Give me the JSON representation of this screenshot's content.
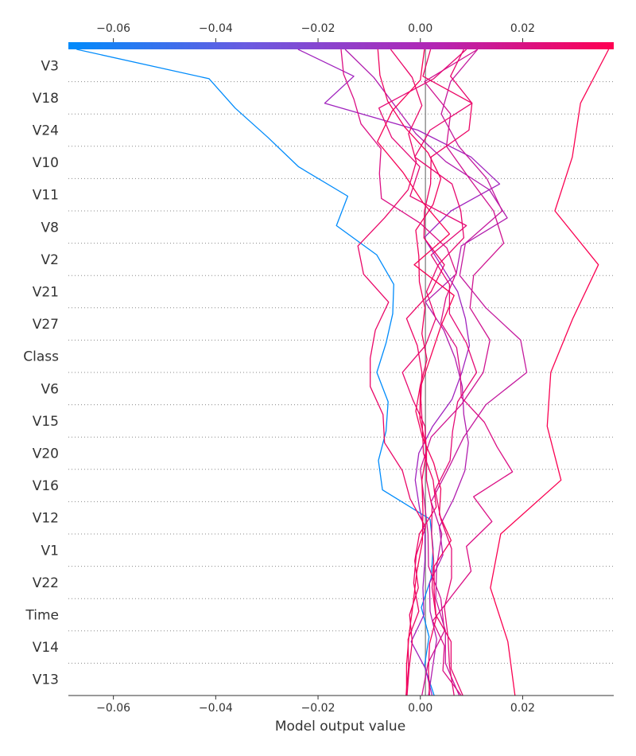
{
  "chart_data": {
    "type": "line",
    "subtype": "shap-decision-plot",
    "xlabel": "Model output value",
    "xlim": [
      -0.0688,
      0.0378
    ],
    "base_value": 0.001,
    "x_ticks": [
      -0.06,
      -0.04,
      -0.02,
      0.0,
      0.02
    ],
    "x_tick_labels": [
      "−0.06",
      "−0.04",
      "−0.02",
      "0.00",
      "0.02"
    ],
    "colorbar": {
      "position": "top",
      "colormap": "blue-to-red",
      "stops": [
        "#008bfb",
        "#6c5ae0",
        "#b226b5",
        "#ff0052"
      ]
    },
    "features": [
      "V3",
      "V18",
      "V24",
      "V10",
      "V11",
      "V8",
      "V2",
      "V21",
      "V27",
      "Class",
      "V6",
      "V15",
      "V20",
      "V16",
      "V12",
      "V1",
      "V22",
      "Time",
      "V14",
      "V13"
    ],
    "grid": "dotted-horizontal",
    "series": [
      {
        "color": "#008bfb",
        "values": [
          0.0027,
          0.0008,
          0.0017,
          0.0002,
          0.0021,
          0.0025,
          0.0019,
          -0.0074,
          -0.0082,
          -0.0067,
          -0.0063,
          -0.0085,
          -0.0067,
          -0.0054,
          -0.0052,
          -0.0085,
          -0.0164,
          -0.0142,
          -0.0238,
          -0.0298,
          -0.0362,
          -0.0413,
          -0.0672
        ]
      },
      {
        "color": "#a023be",
        "values": [
          0.0023,
          0.001,
          -0.0018,
          0.0007,
          0.0005,
          0.0009,
          0.0009,
          -0.0002,
          -0.001,
          -0.0003,
          0.0024,
          0.0062,
          0.0081,
          0.0096,
          0.0088,
          0.0073,
          0.004,
          0.0007,
          0.006,
          0.0155,
          0.0099,
          -0.0005,
          -0.0187,
          -0.013,
          -0.0239
        ]
      },
      {
        "color": "#b11eae",
        "values": [
          0.0016,
          0.0024,
          0.0032,
          0.0019,
          0.0018,
          0.0044,
          0.0037,
          0.0065,
          0.0087,
          0.0094,
          0.0085,
          0.0082,
          0.0068,
          0.0046,
          0.001,
          0.007,
          0.008,
          0.017,
          0.0135,
          0.005,
          -0.0009,
          -0.005,
          -0.0091,
          -0.0147
        ]
      },
      {
        "color": "#c41a9e",
        "values": [
          0.0076,
          0.0049,
          0.0049,
          0.003,
          0.0032,
          0.0042,
          0.0021,
          0.0054,
          0.0085,
          0.0128,
          0.0208,
          0.0196,
          0.0128,
          0.0077,
          0.0088,
          0.016,
          0.013,
          0.0075,
          0.0041,
          0.0059,
          0.0112
        ]
      },
      {
        "color": "#cf1491",
        "values": [
          0.0003,
          0.0015,
          0.0047,
          0.004,
          0.0016,
          0.0015,
          0.0008,
          0.0,
          0.0021,
          0.008,
          0.0123,
          0.0136,
          0.0097,
          0.0104,
          0.0163,
          0.0143,
          0.0096,
          0.0051,
          0.0059,
          0.0008,
          0.0112
        ]
      },
      {
        "color": "#db0f84",
        "values": [
          0.008,
          0.0044,
          0.0047,
          0.0024,
          0.0061,
          0.0099,
          0.009,
          0.014,
          0.0104,
          0.018,
          0.015,
          0.0125,
          0.008,
          0.0078,
          0.0071,
          0.004,
          0.005,
          0.007,
          0.0052,
          0.0,
          -0.0076,
          -0.008,
          -0.0077,
          -0.0116,
          -0.013,
          -0.015,
          -0.0155
        ]
      },
      {
        "color": "#e40b76",
        "values": [
          0.0066,
          0.0057,
          0.0054,
          0.0047,
          0.0061,
          0.0061,
          0.004,
          0.0029,
          0.0058,
          0.0063,
          0.0073,
          0.011,
          0.009,
          0.0057,
          0.0057,
          0.0021,
          0.009,
          -0.002,
          -0.0001,
          -0.0056,
          -0.0081,
          0.0026,
          0.009
        ]
      },
      {
        "color": "#e7086e",
        "values": [
          0.0083,
          0.006,
          0.006,
          0.003,
          0.0023,
          0.0026,
          0.0022,
          0.0023,
          0.0012,
          0.0012,
          0.0009,
          -0.0015,
          -0.0035,
          0.001,
          0.003,
          0.0012,
          0.0035,
          0.0085,
          0.0079,
          0.0062,
          -0.0011,
          0.0019,
          0.0101,
          0.0059,
          0.0085
        ]
      },
      {
        "color": "#ea0768",
        "values": [
          -0.0028,
          -0.0023,
          -0.0024,
          -0.0003,
          -0.0013,
          -0.0008,
          0.001,
          -0.002,
          -0.0035,
          -0.007,
          -0.0073,
          -0.0098,
          -0.0098,
          -0.0088,
          -0.0062,
          -0.0111,
          -0.0122,
          -0.007,
          -0.0024,
          -0.0008,
          -0.0023,
          0.0003,
          -0.0016,
          -0.0058
        ]
      },
      {
        "color": "#ef045e",
        "values": [
          0.0018,
          0.0016,
          0.0018,
          0.0031,
          0.0027,
          0.0027,
          0.006,
          0.0037,
          0.004,
          0.0026,
          0.0004,
          -0.0009,
          0.0,
          0.0013,
          0.0003,
          0.0009,
          -0.0002,
          -0.0003,
          -0.0009,
          0.0025,
          0.004,
          0.0015,
          -0.0031,
          -0.0064,
          -0.0079,
          -0.0083
        ]
      },
      {
        "color": "#f50356",
        "values": [
          -0.0027,
          -0.0027,
          -0.0022,
          -0.0014,
          -0.0007,
          0.0004,
          0.0005,
          0.0003,
          0.0013,
          -0.0001,
          0.0,
          0.002,
          0.004,
          0.0066,
          -0.0012,
          0.0057,
          0.0006,
          -0.0034,
          -0.0084,
          -0.0055,
          0.0,
          0.0008
        ]
      },
      {
        "color": "#ec0665",
        "values": [
          -0.0026,
          -0.0022,
          -0.0016,
          -0.0021,
          -0.0004,
          -0.0011,
          -0.0002,
          0.0031,
          0.0025,
          0.0006,
          0.0004,
          0.0001,
          0.0003,
          -0.0006,
          -0.0027,
          0.0021,
          0.0047,
          0.0007,
          0.0008,
          0.002,
          0.0021,
          0.0095,
          0.0101,
          0.0005,
          0.002
        ]
      },
      {
        "color": "#fa0252",
        "values": [
          0.0185,
          0.0171,
          0.0137,
          0.0157,
          0.0275,
          0.0248,
          0.0255,
          0.0298,
          0.0348,
          0.0263,
          0.0297,
          0.0313,
          0.0368
        ]
      }
    ]
  }
}
